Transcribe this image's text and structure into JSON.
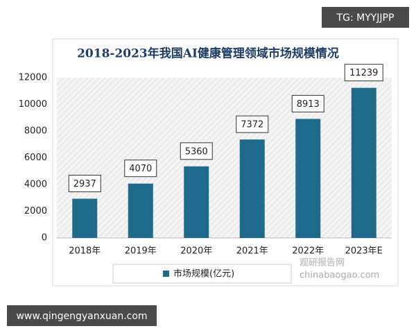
{
  "chart_data": {
    "type": "bar",
    "title": "2018-2023年我国AI健康管理领域市场规模情况",
    "categories": [
      "2018年",
      "2019年",
      "2020年",
      "2021年",
      "2022年",
      "2023年E"
    ],
    "series": [
      {
        "name": "市场规模(亿元)",
        "color": "#1d6a8b",
        "values": [
          2937,
          4070,
          5360,
          7372,
          8913,
          11239
        ]
      }
    ],
    "ylim": [
      0,
      12000
    ],
    "yticks": [
      0,
      2000,
      4000,
      6000,
      8000,
      10000,
      12000
    ],
    "grid": false,
    "legend": "bottom"
  },
  "overlay": {
    "top_tag": "TG: MYYJJPP",
    "bottom_url": "www.qingengyanxuan.com",
    "logo_name": "观研报告网",
    "logo_url": "chinabaogao.com"
  }
}
